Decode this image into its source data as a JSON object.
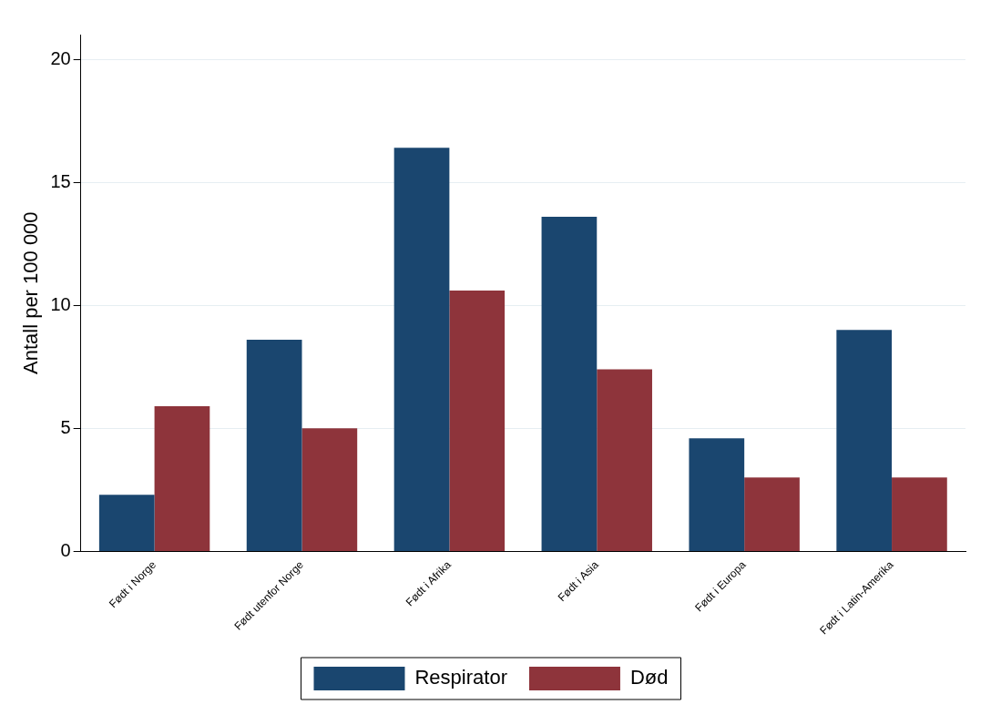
{
  "chart_data": {
    "type": "bar",
    "ylabel": "Antall per 100 000",
    "categories": [
      "Født i Norge",
      "Født utenfor Norge",
      "Født i Afrika",
      "Født i Asia",
      "Født i Europa",
      "Født i Latin-Amerika"
    ],
    "series": [
      {
        "name": "Respirator",
        "color": "#1a466f",
        "values": [
          2.3,
          8.6,
          16.4,
          13.6,
          4.6,
          9.0
        ]
      },
      {
        "name": "Død",
        "color": "#8e343b",
        "values": [
          5.9,
          5.0,
          10.6,
          7.4,
          3.0,
          3.0
        ]
      }
    ],
    "ylim": [
      0,
      21
    ],
    "yticks": [
      0,
      5,
      10,
      15,
      20
    ],
    "grid": "y",
    "legend": "bottom"
  }
}
